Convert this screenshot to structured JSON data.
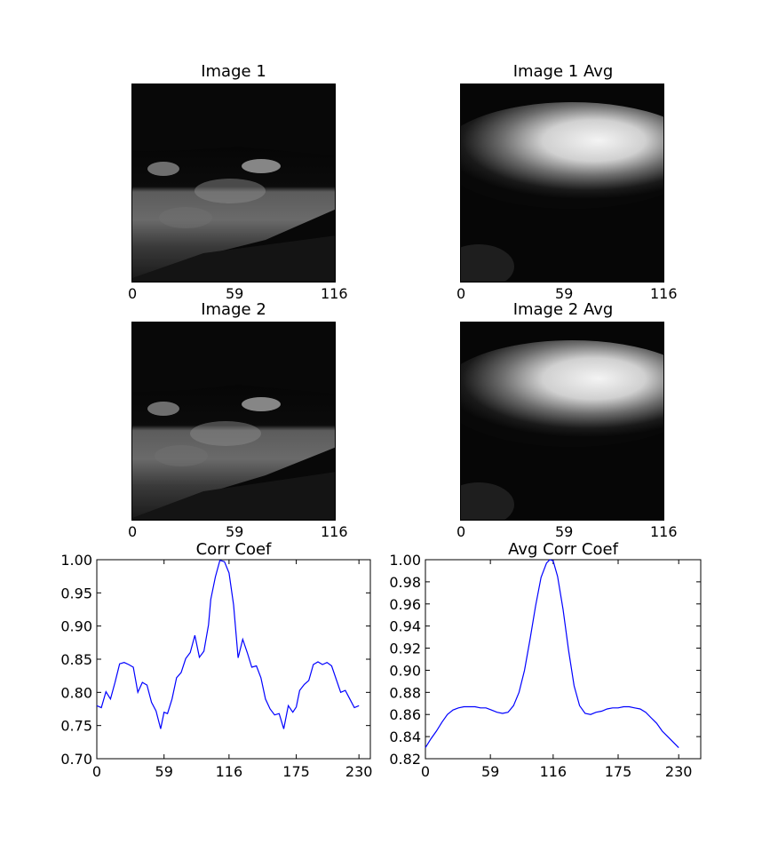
{
  "panels": {
    "img1": {
      "title": "Image 1",
      "ticks": [
        "0",
        "59",
        "116"
      ]
    },
    "img1avg": {
      "title": "Image 1 Avg",
      "ticks": [
        "0",
        "59",
        "116"
      ]
    },
    "img2": {
      "title": "Image 2",
      "ticks": [
        "0",
        "59",
        "116"
      ]
    },
    "img2avg": {
      "title": "Image 2 Avg",
      "ticks": [
        "0",
        "59",
        "116"
      ]
    }
  },
  "chart_data": [
    {
      "type": "line",
      "title": "Corr Coef",
      "xlabel": "",
      "ylabel": "",
      "xlim": [
        0,
        240
      ],
      "ylim": [
        0.7,
        1.0
      ],
      "xticks": [
        0,
        59,
        116,
        175,
        230
      ],
      "yticks": [
        "0.70",
        "0.75",
        "0.80",
        "0.85",
        "0.90",
        "0.95",
        "1.00"
      ],
      "color": "#0000ff",
      "x": [
        0,
        4,
        8,
        12,
        16,
        20,
        24,
        28,
        32,
        36,
        40,
        44,
        48,
        52,
        56,
        59,
        62,
        66,
        70,
        74,
        78,
        82,
        86,
        90,
        94,
        98,
        100,
        104,
        108,
        112,
        116,
        120,
        124,
        128,
        132,
        136,
        140,
        144,
        148,
        152,
        156,
        160,
        164,
        168,
        172,
        175,
        178,
        182,
        186,
        190,
        194,
        198,
        202,
        206,
        210,
        214,
        218,
        222,
        226,
        230
      ],
      "y": [
        0.78,
        0.777,
        0.801,
        0.79,
        0.815,
        0.843,
        0.845,
        0.842,
        0.838,
        0.8,
        0.815,
        0.811,
        0.785,
        0.772,
        0.745,
        0.77,
        0.768,
        0.79,
        0.822,
        0.83,
        0.851,
        0.86,
        0.886,
        0.853,
        0.862,
        0.902,
        0.94,
        0.974,
        0.999,
        0.997,
        0.98,
        0.932,
        0.852,
        0.88,
        0.86,
        0.838,
        0.84,
        0.822,
        0.79,
        0.775,
        0.766,
        0.768,
        0.745,
        0.78,
        0.77,
        0.778,
        0.803,
        0.812,
        0.818,
        0.842,
        0.846,
        0.842,
        0.845,
        0.84,
        0.82,
        0.8,
        0.803,
        0.79,
        0.777,
        0.78
      ]
    },
    {
      "type": "line",
      "title": "Avg Corr Coef",
      "xlabel": "",
      "ylabel": "",
      "xlim": [
        0,
        250
      ],
      "ylim": [
        0.82,
        1.0
      ],
      "xticks": [
        0,
        59,
        116,
        175,
        230
      ],
      "yticks": [
        "0.82",
        "0.84",
        "0.86",
        "0.88",
        "0.90",
        "0.92",
        "0.94",
        "0.96",
        "0.98",
        "1.00"
      ],
      "color": "#0000ff",
      "x": [
        0,
        5,
        10,
        15,
        20,
        25,
        30,
        35,
        40,
        45,
        50,
        55,
        60,
        65,
        70,
        75,
        80,
        85,
        90,
        95,
        100,
        105,
        110,
        113,
        116,
        120,
        125,
        130,
        135,
        140,
        145,
        150,
        155,
        160,
        165,
        170,
        175,
        180,
        185,
        190,
        195,
        200,
        205,
        210,
        215,
        220,
        225,
        230
      ],
      "y": [
        0.83,
        0.838,
        0.845,
        0.853,
        0.86,
        0.864,
        0.866,
        0.867,
        0.867,
        0.867,
        0.866,
        0.866,
        0.864,
        0.862,
        0.861,
        0.862,
        0.868,
        0.88,
        0.9,
        0.928,
        0.958,
        0.984,
        0.997,
        1.0,
        0.999,
        0.985,
        0.955,
        0.918,
        0.886,
        0.868,
        0.861,
        0.86,
        0.862,
        0.863,
        0.865,
        0.866,
        0.866,
        0.867,
        0.867,
        0.866,
        0.865,
        0.862,
        0.857,
        0.852,
        0.845,
        0.84,
        0.835,
        0.83
      ]
    }
  ]
}
